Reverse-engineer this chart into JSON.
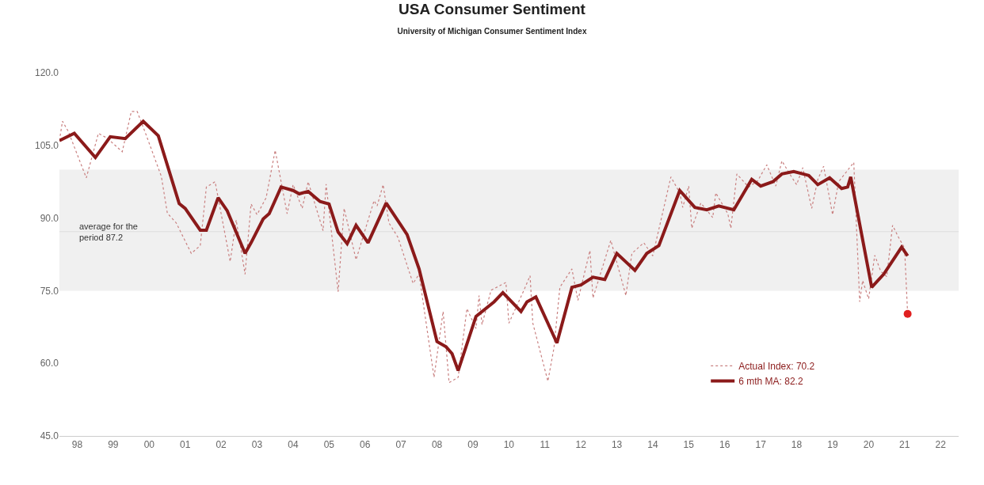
{
  "chart_data": {
    "type": "line",
    "title": "USA Consumer Sentiment",
    "subtitle": "University of Michigan Consumer Sentiment Index",
    "series": [
      {
        "name": "Actual Index: 70.2",
        "color": "#c98080",
        "line_style": "dotted",
        "x": [
          "1998-01",
          "1998-02",
          "1998-04",
          "1998-10",
          "1999-02",
          "1999-05",
          "1999-10",
          "2000-01",
          "2000-03",
          "2000-06",
          "2000-11",
          "2001-01",
          "2001-04",
          "2001-09",
          "2001-12",
          "2002-02",
          "2002-05",
          "2002-10",
          "2002-12",
          "2003-03",
          "2003-05",
          "2003-07",
          "2003-10",
          "2004-01",
          "2004-05",
          "2004-07",
          "2004-10",
          "2004-12",
          "2005-05",
          "2005-06",
          "2005-10",
          "2005-12",
          "2006-04",
          "2006-10",
          "2006-11",
          "2007-01",
          "2007-03",
          "2007-06",
          "2007-11",
          "2008-01",
          "2008-06",
          "2008-09",
          "2008-11",
          "2009-02",
          "2009-05",
          "2009-08",
          "2009-09",
          "2009-10",
          "2010-01",
          "2010-06",
          "2010-07",
          "2010-12",
          "2011-02",
          "2011-03",
          "2011-08",
          "2011-10",
          "2011-12",
          "2012-04",
          "2012-06",
          "2012-10",
          "2012-11",
          "2013-05",
          "2013-10",
          "2013-12",
          "2014-04",
          "2014-07",
          "2015-01",
          "2015-04",
          "2015-05",
          "2015-07",
          "2015-08",
          "2015-11",
          "2016-03",
          "2016-04",
          "2016-08",
          "2016-09",
          "2016-11",
          "2017-03",
          "2017-06",
          "2017-09",
          "2017-12",
          "2018-02",
          "2018-05",
          "2018-07",
          "2018-09",
          "2018-12",
          "2019-02",
          "2019-04",
          "2019-07",
          "2019-09",
          "2020-02",
          "2020-04",
          "2020-05",
          "2020-07",
          "2020-09",
          "2020-11",
          "2021-01",
          "2021-03",
          "2021-05",
          "2021-07",
          "2021-08"
        ],
        "values": [
          106,
          110,
          107.9,
          98.3,
          107.5,
          106.5,
          103.7,
          112,
          112,
          107.1,
          98.6,
          91,
          89,
          82.7,
          84.3,
          96.4,
          97.5,
          81,
          89.6,
          78.4,
          92.9,
          90.7,
          94.2,
          104,
          90.9,
          96.9,
          92,
          97.5,
          87.4,
          97,
          74.8,
          92,
          81.4,
          93.6,
          92.5,
          96.9,
          89,
          86,
          76.5,
          78.4,
          57.1,
          70.7,
          56,
          57.1,
          71.3,
          67.2,
          74,
          68,
          75.1,
          76.7,
          68.3,
          75.1,
          78.1,
          68.3,
          56.3,
          63.1,
          75.7,
          79.5,
          73,
          83.3,
          73.5,
          85.4,
          74,
          82.7,
          84.9,
          82.2,
          98.5,
          95.2,
          92.2,
          96.6,
          87.9,
          93.1,
          90.1,
          95.2,
          90.9,
          87.9,
          99.1,
          96.4,
          97.7,
          101,
          96.6,
          101.8,
          98.8,
          96.9,
          100.4,
          92,
          98,
          100.7,
          90.7,
          97.5,
          101.5,
          72.7,
          77.1,
          73.3,
          82.3,
          79,
          77.9,
          88.5,
          86,
          83.8,
          70.2
        ]
      },
      {
        "name": "6 mth MA: 82.2",
        "color": "#8b1a1a",
        "line_style": "solid",
        "x": [
          "1998-01",
          "1998-06",
          "1999-01",
          "1999-06",
          "1999-11",
          "2000-05",
          "2000-10",
          "2001-05",
          "2001-07",
          "2001-12",
          "2002-02",
          "2002-06",
          "2002-09",
          "2003-03",
          "2003-05",
          "2003-09",
          "2003-11",
          "2004-03",
          "2004-07",
          "2004-09",
          "2004-12",
          "2005-04",
          "2005-07",
          "2005-10",
          "2006-01",
          "2006-04",
          "2006-08",
          "2007-02",
          "2007-09",
          "2008-01",
          "2008-07",
          "2008-10",
          "2008-12",
          "2009-02",
          "2009-08",
          "2010-02",
          "2010-05",
          "2010-11",
          "2011-01",
          "2011-04",
          "2011-11",
          "2012-04",
          "2012-07",
          "2012-11",
          "2013-03",
          "2013-07",
          "2014-01",
          "2014-05",
          "2014-09",
          "2015-04",
          "2015-09",
          "2016-01",
          "2016-05",
          "2016-10",
          "2017-04",
          "2017-07",
          "2017-11",
          "2018-02",
          "2018-06",
          "2018-11",
          "2019-02",
          "2019-06",
          "2019-10",
          "2019-12",
          "2020-01",
          "2020-08",
          "2020-12",
          "2021-06",
          "2021-08"
        ],
        "values": [
          106,
          107.5,
          102.5,
          106.8,
          106.4,
          110,
          107,
          93,
          92,
          87.5,
          87.5,
          94.2,
          91.5,
          82.7,
          84.9,
          89.8,
          90.9,
          96.4,
          95.7,
          95,
          95.5,
          93.4,
          92.9,
          87.1,
          84.7,
          88.5,
          84.9,
          93.1,
          86.6,
          79.5,
          64.5,
          63.4,
          62,
          58.5,
          69.7,
          72.7,
          74.6,
          70.7,
          72.7,
          73.7,
          64.2,
          75.7,
          76.2,
          77.8,
          77.3,
          82.7,
          79.2,
          82.7,
          84.3,
          95.7,
          92.2,
          91.7,
          92.5,
          91.7,
          98,
          96.6,
          97.5,
          99.1,
          99.6,
          98.8,
          96.9,
          98.3,
          96.1,
          96.4,
          98.5,
          75.7,
          78.4,
          84,
          82.2
        ]
      },
      {
        "type": "scatter",
        "color": "#e02020",
        "marker": "circle",
        "x": [
          "2021-08"
        ],
        "values": [
          70.2
        ]
      }
    ],
    "xlim": [
      "1998-01-01",
      "2023-01-01"
    ],
    "xticks": [
      {
        "value": "1998-07-01",
        "label": "98"
      },
      {
        "value": "1999-07-01",
        "label": "99"
      },
      {
        "value": "2000-07-01",
        "label": "00"
      },
      {
        "value": "2001-07-01",
        "label": "01"
      },
      {
        "value": "2002-07-01",
        "label": "02"
      },
      {
        "value": "2003-07-01",
        "label": "03"
      },
      {
        "value": "2004-07-01",
        "label": "04"
      },
      {
        "value": "2005-07-01",
        "label": "05"
      },
      {
        "value": "2006-07-01",
        "label": "06"
      },
      {
        "value": "2007-07-01",
        "label": "07"
      },
      {
        "value": "2008-07-01",
        "label": "08"
      },
      {
        "value": "2009-07-01",
        "label": "09"
      },
      {
        "value": "2010-07-01",
        "label": "10"
      },
      {
        "value": "2011-07-01",
        "label": "11"
      },
      {
        "value": "2012-07-01",
        "label": "12"
      },
      {
        "value": "2013-07-01",
        "label": "13"
      },
      {
        "value": "2014-07-01",
        "label": "14"
      },
      {
        "value": "2015-07-01",
        "label": "15"
      },
      {
        "value": "2016-07-01",
        "label": "16"
      },
      {
        "value": "2017-07-01",
        "label": "17"
      },
      {
        "value": "2018-07-01",
        "label": "18"
      },
      {
        "value": "2019-07-01",
        "label": "19"
      },
      {
        "value": "2020-07-01",
        "label": "20"
      },
      {
        "value": "2021-07-01",
        "label": "21"
      },
      {
        "value": "2022-07-01",
        "label": "22"
      }
    ],
    "ylim": [
      45,
      120
    ],
    "yticks": [
      {
        "value": 45,
        "label": "45.0"
      },
      {
        "value": 60,
        "label": "60.0"
      },
      {
        "value": 75,
        "label": "75.0"
      },
      {
        "value": 90,
        "label": "90.0"
      },
      {
        "value": 105,
        "label": "105.0"
      },
      {
        "value": 120,
        "label": "120.0"
      }
    ],
    "bands": [
      {
        "axis": "y",
        "from": 75,
        "to": 100,
        "color": "#f0f0f0"
      }
    ],
    "ref_lines": [
      {
        "axis": "y",
        "value": 87.2,
        "label": "average for the\nperiod 87.2",
        "color": "#dddddd"
      }
    ],
    "legend": "bottom right"
  }
}
